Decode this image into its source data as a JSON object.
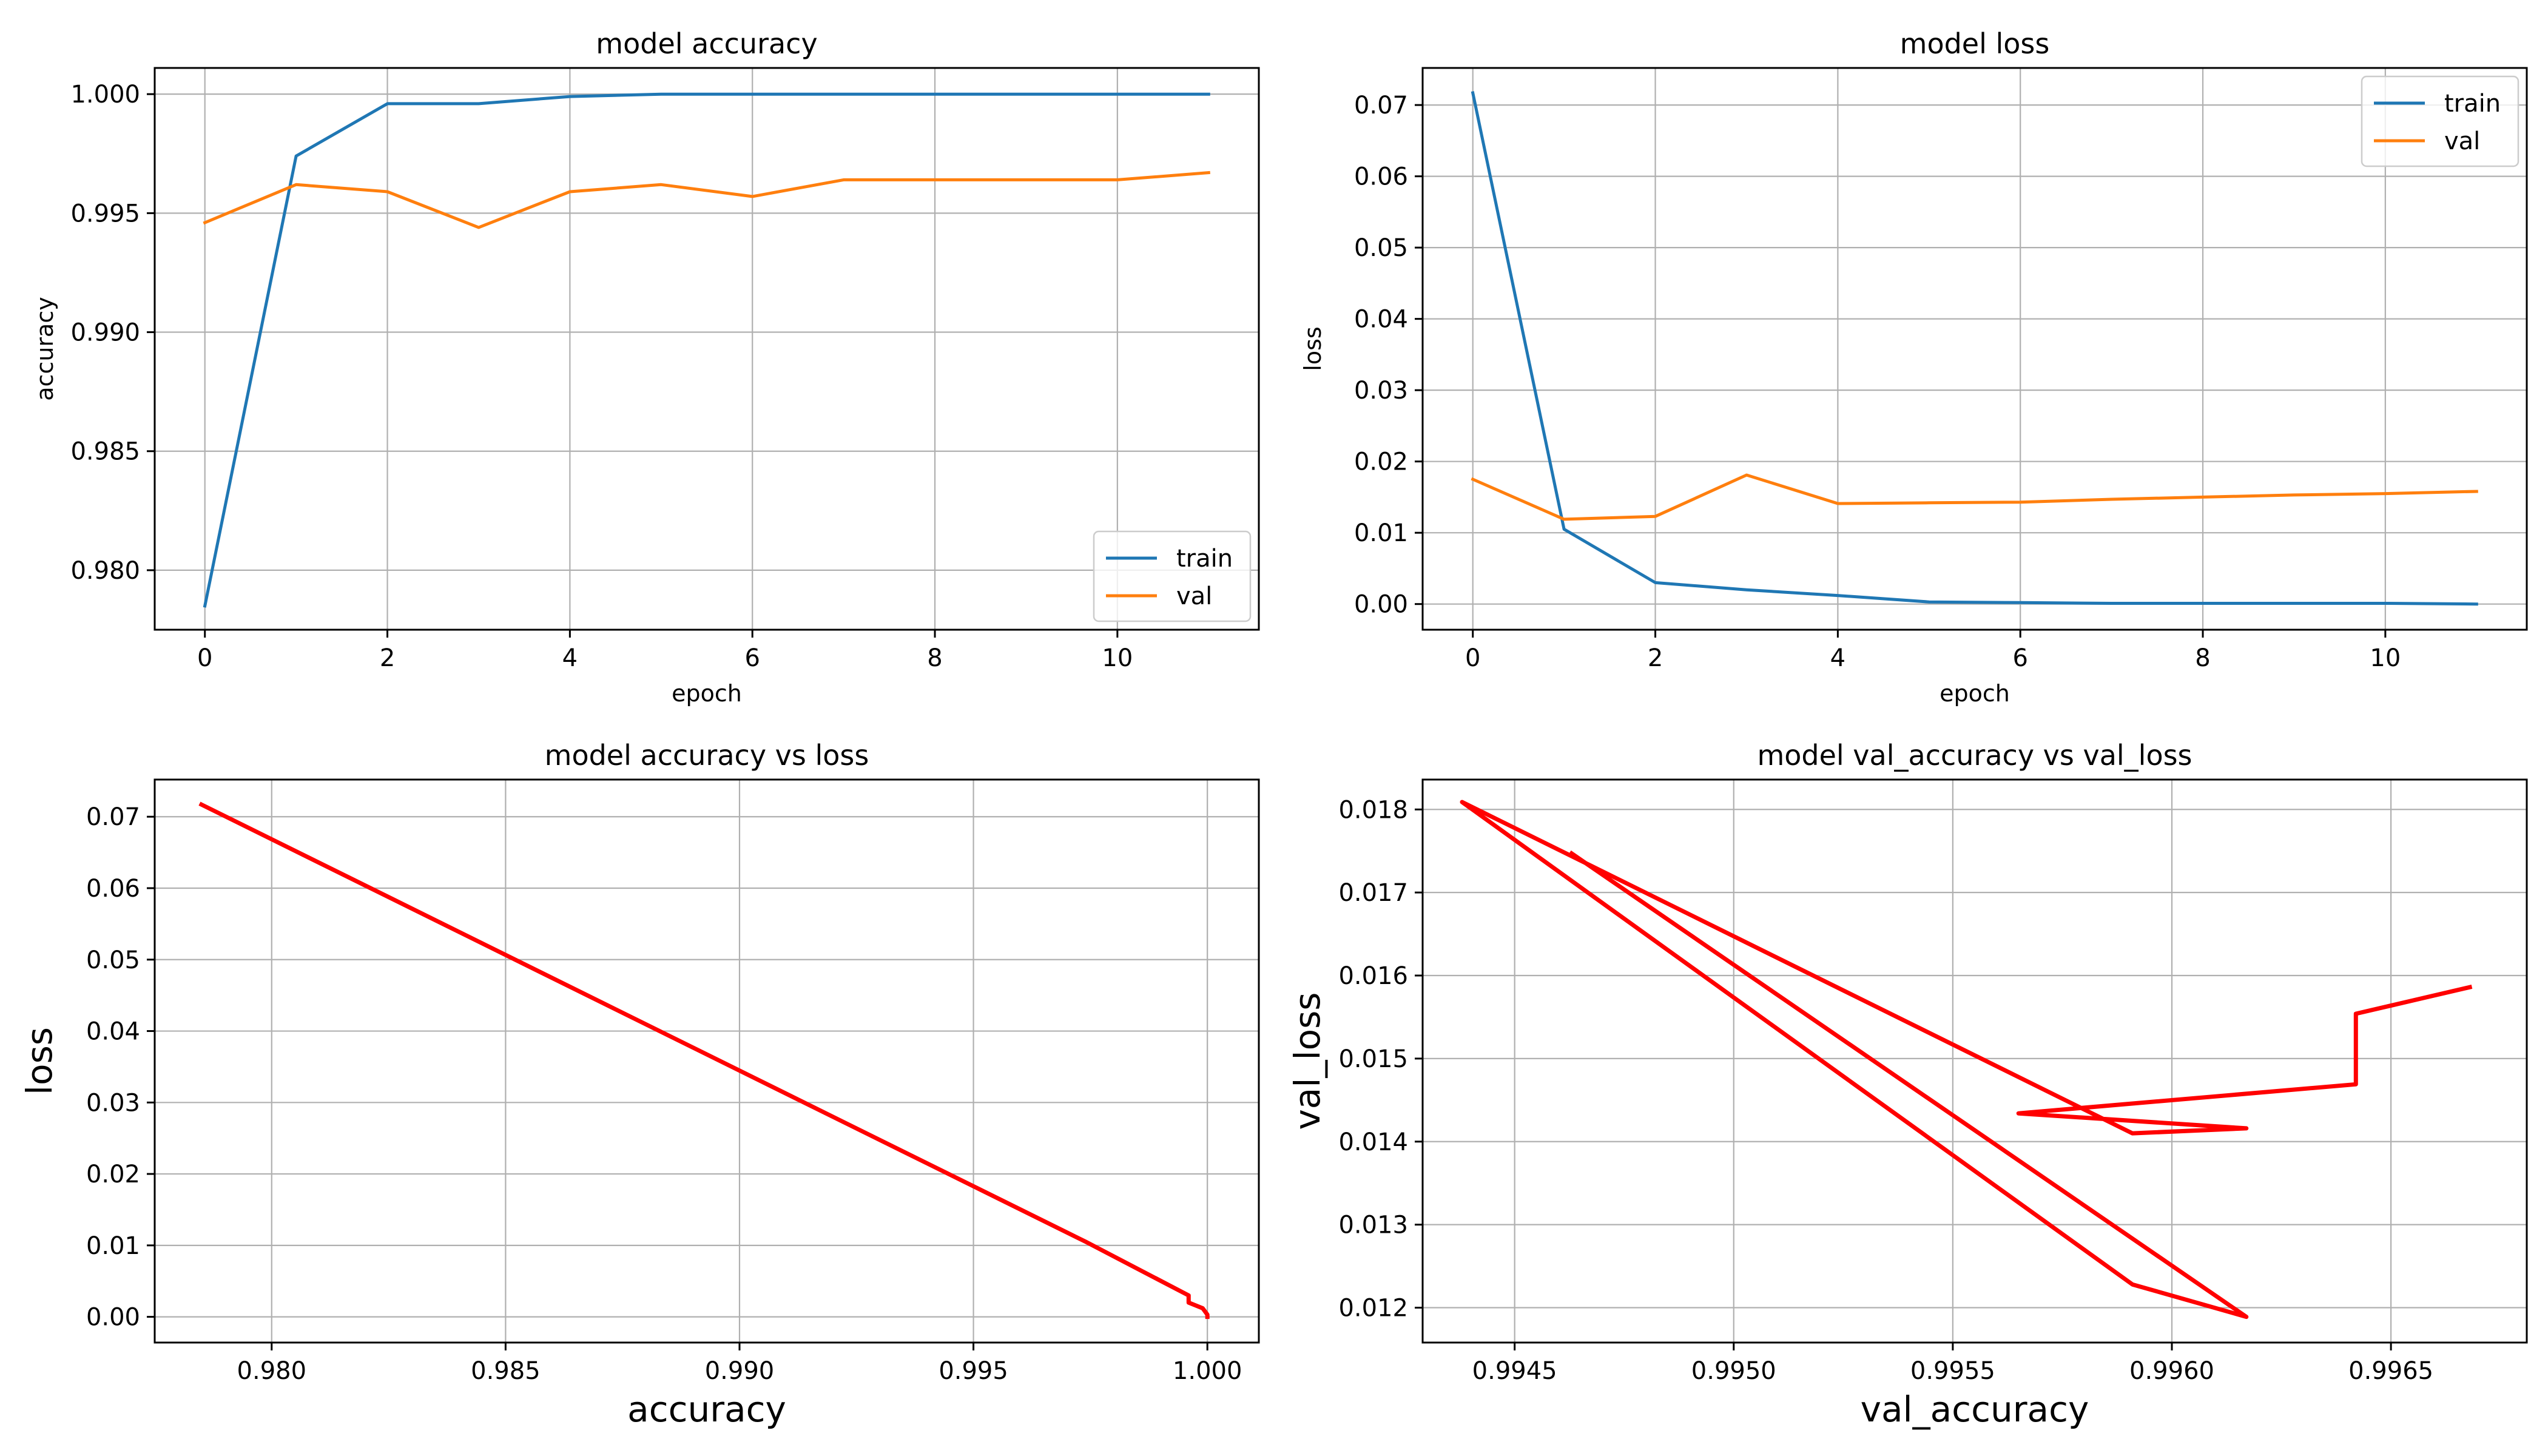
{
  "chart_data": [
    {
      "type": "line",
      "title": "model accuracy",
      "xlabel": "epoch",
      "ylabel": "accuracy",
      "xlim": [
        -0.55,
        11.55
      ],
      "ylim": [
        0.9775,
        1.0011
      ],
      "x_ticks": [
        0,
        2,
        4,
        6,
        8,
        10
      ],
      "x_tick_labels": [
        "0",
        "2",
        "4",
        "6",
        "8",
        "10"
      ],
      "y_ticks": [
        0.98,
        0.985,
        0.99,
        0.995,
        1.0
      ],
      "y_tick_labels": [
        "0.980",
        "0.985",
        "0.990",
        "0.995",
        "1.000"
      ],
      "grid": true,
      "legend_position": "lower-right",
      "series": [
        {
          "name": "train",
          "color": "#1f77b4",
          "x": [
            0,
            1,
            2,
            3,
            4,
            5,
            6,
            7,
            8,
            9,
            10,
            11
          ],
          "y": [
            0.9785,
            0.9974,
            0.9996,
            0.9996,
            0.9999,
            1.0,
            1.0,
            1.0,
            1.0,
            1.0,
            1.0,
            1.0
          ]
        },
        {
          "name": "val",
          "color": "#ff7f0e",
          "x": [
            0,
            1,
            2,
            3,
            4,
            5,
            6,
            7,
            8,
            9,
            10,
            11
          ],
          "y": [
            0.9946,
            0.9962,
            0.9959,
            0.9944,
            0.9959,
            0.9962,
            0.9957,
            0.9964,
            0.9964,
            0.9964,
            0.9964,
            0.9967
          ]
        }
      ]
    },
    {
      "type": "line",
      "title": "model loss",
      "xlabel": "epoch",
      "ylabel": "loss",
      "xlim": [
        -0.55,
        11.55
      ],
      "ylim": [
        -0.0036,
        0.0752
      ],
      "x_ticks": [
        0,
        2,
        4,
        6,
        8,
        10
      ],
      "x_tick_labels": [
        "0",
        "2",
        "4",
        "6",
        "8",
        "10"
      ],
      "y_ticks": [
        0,
        0.01,
        0.02,
        0.03,
        0.04,
        0.05,
        0.06,
        0.07
      ],
      "y_tick_labels": [
        "0.00",
        "0.01",
        "0.02",
        "0.03",
        "0.04",
        "0.05",
        "0.06",
        "0.07"
      ],
      "grid": true,
      "legend_position": "upper-right",
      "series": [
        {
          "name": "train",
          "color": "#1f77b4",
          "x": [
            0,
            1,
            2,
            3,
            4,
            5,
            6,
            7,
            8,
            9,
            10,
            11
          ],
          "y": [
            0.0717,
            0.0105,
            0.003,
            0.002,
            0.0012,
            0.0003,
            0.0002,
            0.0001,
            0.0001,
            0.0001,
            0.0001,
            0.0
          ]
        },
        {
          "name": "val",
          "color": "#ff7f0e",
          "x": [
            0,
            1,
            2,
            3,
            4,
            5,
            6,
            7,
            8,
            9,
            10,
            11
          ],
          "y": [
            0.0175,
            0.0119,
            0.0123,
            0.0181,
            0.0141,
            0.0142,
            0.0143,
            0.0147,
            0.015,
            0.0153,
            0.0155,
            0.0158
          ]
        }
      ]
    },
    {
      "type": "line",
      "title": "model accuracy vs loss",
      "xlabel": "accuracy",
      "ylabel": "loss",
      "xlim": [
        0.9775,
        1.0011
      ],
      "ylim": [
        -0.0036,
        0.0752
      ],
      "x_ticks": [
        0.98,
        0.985,
        0.99,
        0.995,
        1.0
      ],
      "x_tick_labels": [
        "0.980",
        "0.985",
        "0.990",
        "0.995",
        "1.000"
      ],
      "y_ticks": [
        0,
        0.01,
        0.02,
        0.03,
        0.04,
        0.05,
        0.06,
        0.07
      ],
      "y_tick_labels": [
        "0.00",
        "0.01",
        "0.02",
        "0.03",
        "0.04",
        "0.05",
        "0.06",
        "0.07"
      ],
      "grid": true,
      "series": [
        {
          "color": "#ff0000",
          "x": [
            0.9785,
            0.9974,
            0.9996,
            0.9996,
            0.9999,
            1.0,
            1.0,
            1.0,
            1.0,
            1.0,
            1.0,
            1.0
          ],
          "y": [
            0.0717,
            0.0105,
            0.003,
            0.002,
            0.0012,
            0.0003,
            0.0002,
            0.0001,
            0.0001,
            0.0001,
            0.0001,
            0.0
          ]
        }
      ]
    },
    {
      "type": "line",
      "title": "model val_accuracy vs val_loss",
      "xlabel": "val_accuracy",
      "ylabel": "val_loss",
      "xlim": [
        0.99429,
        0.99681
      ],
      "ylim": [
        0.01158,
        0.01836
      ],
      "x_ticks": [
        0.9945,
        0.995,
        0.9955,
        0.996,
        0.9965
      ],
      "x_tick_labels": [
        "0.9945",
        "0.9950",
        "0.9955",
        "0.9960",
        "0.9965"
      ],
      "y_ticks": [
        0.012,
        0.013,
        0.014,
        0.015,
        0.016,
        0.017,
        0.018
      ],
      "y_tick_labels": [
        "0.012",
        "0.013",
        "0.014",
        "0.015",
        "0.016",
        "0.017",
        "0.018"
      ],
      "grid": true,
      "series": [
        {
          "color": "#ff0000",
          "x": [
            0.99463,
            0.99617,
            0.99591,
            0.99438,
            0.99591,
            0.99617,
            0.99565,
            0.99642,
            0.99642,
            0.99642,
            0.99642,
            0.99668
          ],
          "y": [
            0.01747,
            0.01189,
            0.01228,
            0.01809,
            0.0141,
            0.01416,
            0.01434,
            0.01469,
            0.01497,
            0.01526,
            0.01554,
            0.01586
          ]
        }
      ]
    }
  ]
}
